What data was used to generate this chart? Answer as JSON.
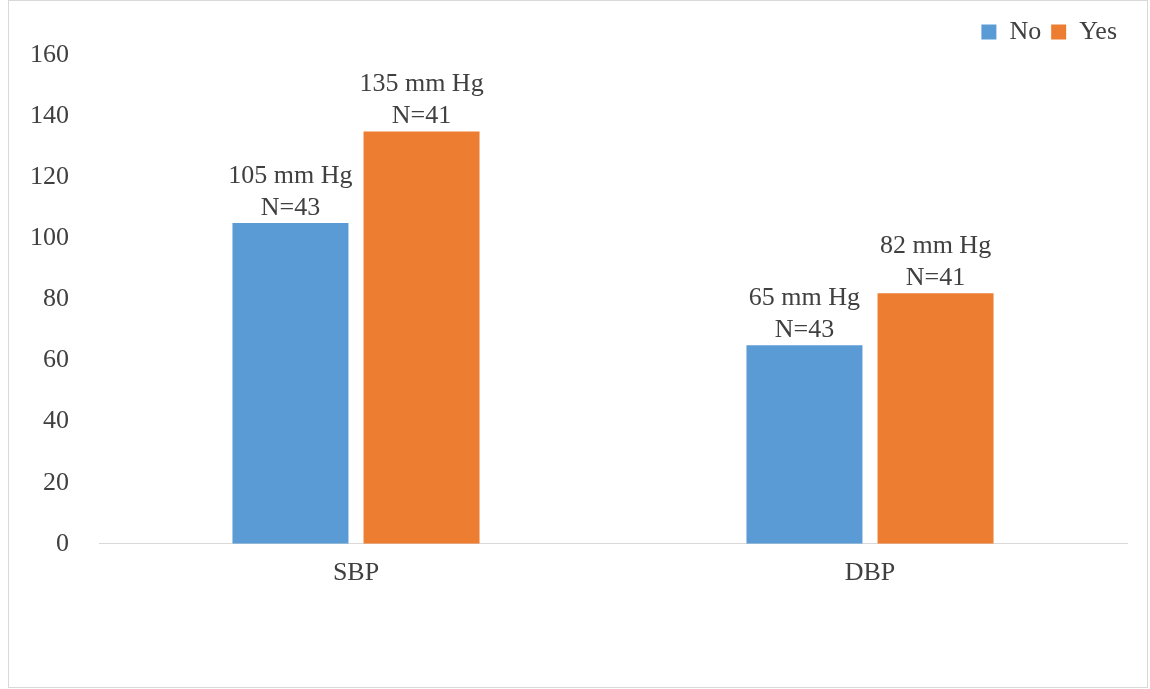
{
  "chart_data": {
    "type": "bar",
    "categories": [
      "SBP",
      "DBP"
    ],
    "series": [
      {
        "name": "No",
        "color": "#5b9bd5",
        "values": [
          105,
          65
        ],
        "value_labels": [
          "105 mm Hg\nN=43",
          "65 mm Hg\nN=43"
        ]
      },
      {
        "name": "Yes",
        "color": "#ed7d31",
        "values": [
          135,
          82
        ],
        "value_labels": [
          "135 mm Hg\nN=41",
          "82 mm Hg\nN=41"
        ]
      }
    ],
    "ylim": [
      0,
      160
    ],
    "yticks": [
      0,
      20,
      40,
      60,
      80,
      100,
      120,
      140,
      160
    ],
    "grid": false,
    "legend": "top right"
  }
}
